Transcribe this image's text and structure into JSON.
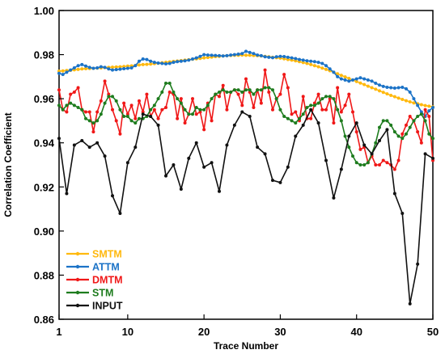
{
  "chart_data": {
    "type": "line",
    "xlabel": "Trace Number",
    "ylabel": "Correlation Coefficient",
    "xlim": [
      1,
      50
    ],
    "ylim": [
      0.86,
      1.0
    ],
    "xticks": [
      1,
      10,
      20,
      30,
      40,
      50
    ],
    "yticks": [
      0.86,
      0.88,
      0.9,
      0.92,
      0.94,
      0.96,
      0.98,
      1.0
    ],
    "ytick_labels": [
      "0.86",
      "0.88",
      "0.90",
      "0.92",
      "0.94",
      "0.96",
      "0.98",
      "1.00"
    ],
    "xtick_labels": [
      "1",
      "10",
      "20",
      "30",
      "40",
      "50"
    ],
    "legend_position": "bottom-left",
    "grid": false,
    "series": [
      {
        "name": "SMTM",
        "color": "#FFB90F",
        "x": [
          1,
          1.5,
          2,
          2.5,
          3,
          3.5,
          4,
          4.5,
          5,
          5.5,
          6,
          6.5,
          7,
          7.5,
          8,
          8.5,
          9,
          9.5,
          10,
          10.5,
          11,
          11.5,
          12,
          12.5,
          13,
          13.5,
          14,
          14.5,
          15,
          15.5,
          16,
          16.5,
          17,
          17.5,
          18,
          18.5,
          19,
          19.5,
          20,
          20.5,
          21,
          21.5,
          22,
          22.5,
          23,
          23.5,
          24,
          24.5,
          25,
          25.5,
          26,
          26.5,
          27,
          27.5,
          28,
          28.5,
          29,
          29.5,
          30,
          30.5,
          31,
          31.5,
          32,
          32.5,
          33,
          33.5,
          34,
          34.5,
          35,
          35.5,
          36,
          36.5,
          37,
          37.5,
          38,
          38.5,
          39,
          39.5,
          40,
          40.5,
          41,
          41.5,
          42,
          42.5,
          43,
          43.5,
          44,
          44.5,
          45,
          45.5,
          46,
          46.5,
          47,
          47.5,
          48,
          48.5,
          49,
          49.5,
          50
        ],
        "values": [
          0.9725,
          0.9726,
          0.9728,
          0.9729,
          0.9731,
          0.9733,
          0.9735,
          0.9736,
          0.9737,
          0.9738,
          0.9739,
          0.974,
          0.9741,
          0.9742,
          0.9743,
          0.9744,
          0.9745,
          0.9746,
          0.9748,
          0.9749,
          0.9751,
          0.9753,
          0.9755,
          0.9756,
          0.9757,
          0.9759,
          0.9761,
          0.9763,
          0.9765,
          0.9767,
          0.9769,
          0.9771,
          0.9773,
          0.9775,
          0.9777,
          0.9779,
          0.9781,
          0.9783,
          0.9785,
          0.9787,
          0.9789,
          0.9791,
          0.9792,
          0.9794,
          0.9795,
          0.9796,
          0.9797,
          0.9797,
          0.9798,
          0.9797,
          0.9797,
          0.9796,
          0.9795,
          0.9794,
          0.9792,
          0.979,
          0.9788,
          0.9786,
          0.9784,
          0.9781,
          0.9778,
          0.9775,
          0.9772,
          0.9768,
          0.9764,
          0.976,
          0.9755,
          0.975,
          0.9745,
          0.9739,
          0.9733,
          0.9727,
          0.972,
          0.9713,
          0.9706,
          0.9699,
          0.9692,
          0.9685,
          0.9678,
          0.9671,
          0.9664,
          0.9657,
          0.965,
          0.9643,
          0.9636,
          0.9629,
          0.9622,
          0.9615,
          0.9609,
          0.9603,
          0.9597,
          0.9591,
          0.9586,
          0.9581,
          0.9577,
          0.9573,
          0.9569,
          0.9566,
          0.9563
        ]
      },
      {
        "name": "ATTM",
        "color": "#1C73C7",
        "x": [
          1,
          1.5,
          2,
          2.5,
          3,
          3.5,
          4,
          4.5,
          5,
          5.5,
          6,
          6.5,
          7,
          7.5,
          8,
          8.5,
          9,
          9.5,
          10,
          10.5,
          11,
          11.5,
          12,
          12.5,
          13,
          13.5,
          14,
          14.5,
          15,
          15.5,
          16,
          16.5,
          17,
          17.5,
          18,
          18.5,
          19,
          19.5,
          20,
          20.5,
          21,
          21.5,
          22,
          22.5,
          23,
          23.5,
          24,
          24.5,
          25,
          25.5,
          26,
          26.5,
          27,
          27.5,
          28,
          28.5,
          29,
          29.5,
          30,
          30.5,
          31,
          31.5,
          32,
          32.5,
          33,
          33.5,
          34,
          34.5,
          35,
          35.5,
          36,
          36.5,
          37,
          37.5,
          38,
          38.5,
          39,
          39.5,
          40,
          40.5,
          41,
          41.5,
          42,
          42.5,
          43,
          43.5,
          44,
          44.5,
          45,
          45.5,
          46,
          46.5,
          47,
          47.5,
          48,
          48.5,
          49,
          49.5,
          50
        ],
        "values": [
          0.9715,
          0.971,
          0.972,
          0.973,
          0.974,
          0.975,
          0.9755,
          0.9748,
          0.9742,
          0.9738,
          0.974,
          0.9745,
          0.9742,
          0.9735,
          0.973,
          0.9732,
          0.9734,
          0.9736,
          0.9738,
          0.974,
          0.975,
          0.977,
          0.978,
          0.9778,
          0.977,
          0.9765,
          0.9762,
          0.976,
          0.9758,
          0.976,
          0.9765,
          0.9768,
          0.977,
          0.9772,
          0.9775,
          0.978,
          0.9785,
          0.9792,
          0.98,
          0.9798,
          0.9797,
          0.9796,
          0.9795,
          0.9794,
          0.9795,
          0.9798,
          0.98,
          0.9802,
          0.9805,
          0.9815,
          0.981,
          0.9805,
          0.9798,
          0.9795,
          0.979,
          0.9788,
          0.9786,
          0.979,
          0.9792,
          0.9791,
          0.9788,
          0.9785,
          0.9782,
          0.9778,
          0.9775,
          0.9772,
          0.977,
          0.9768,
          0.9765,
          0.976,
          0.975,
          0.9735,
          0.972,
          0.97,
          0.969,
          0.9685,
          0.968,
          0.9685,
          0.969,
          0.9695,
          0.969,
          0.9685,
          0.968,
          0.967,
          0.9662,
          0.9656,
          0.9652,
          0.965,
          0.9648,
          0.965,
          0.9652,
          0.9645,
          0.963,
          0.96,
          0.957,
          0.954,
          0.952,
          0.9545,
          0.956
        ]
      },
      {
        "name": "DMTM",
        "color": "#F01818",
        "x": [
          1,
          1.5,
          2,
          2.5,
          3,
          3.5,
          4,
          4.5,
          5,
          5.5,
          6,
          6.5,
          7,
          7.5,
          8,
          8.5,
          9,
          9.5,
          10,
          10.5,
          11,
          11.5,
          12,
          12.5,
          13,
          13.5,
          14,
          14.5,
          15,
          15.5,
          16,
          16.5,
          17,
          17.5,
          18,
          18.5,
          19,
          19.5,
          20,
          20.5,
          21,
          21.5,
          22,
          22.5,
          23,
          23.5,
          24,
          24.5,
          25,
          25.5,
          26,
          26.5,
          27,
          27.5,
          28,
          28.5,
          29,
          29.5,
          30,
          30.5,
          31,
          31.5,
          32,
          32.5,
          33,
          33.5,
          34,
          34.5,
          35,
          35.5,
          36,
          36.5,
          37,
          37.5,
          38,
          38.5,
          39,
          39.5,
          40,
          40.5,
          41,
          41.5,
          42,
          42.5,
          43,
          43.5,
          44,
          44.5,
          45,
          45.5,
          46,
          46.5,
          47,
          47.5,
          48,
          48.5,
          49,
          49.5,
          50
        ],
        "values": [
          0.964,
          0.955,
          0.954,
          0.962,
          0.963,
          0.965,
          0.955,
          0.954,
          0.954,
          0.945,
          0.954,
          0.959,
          0.968,
          0.962,
          0.955,
          0.95,
          0.944,
          0.958,
          0.953,
          0.957,
          0.951,
          0.959,
          0.954,
          0.962,
          0.952,
          0.955,
          0.951,
          0.955,
          0.956,
          0.963,
          0.962,
          0.951,
          0.96,
          0.949,
          0.953,
          0.96,
          0.953,
          0.954,
          0.946,
          0.958,
          0.95,
          0.962,
          0.961,
          0.966,
          0.955,
          0.963,
          0.964,
          0.962,
          0.957,
          0.969,
          0.963,
          0.956,
          0.964,
          0.958,
          0.973,
          0.963,
          0.955,
          0.96,
          0.962,
          0.971,
          0.965,
          0.953,
          0.954,
          0.95,
          0.961,
          0.951,
          0.951,
          0.958,
          0.962,
          0.955,
          0.955,
          0.96,
          0.949,
          0.965,
          0.954,
          0.957,
          0.962,
          0.954,
          0.945,
          0.937,
          0.938,
          0.931,
          0.934,
          0.93,
          0.93,
          0.932,
          0.931,
          0.93,
          0.928,
          0.932,
          0.944,
          0.948,
          0.952,
          0.95,
          0.945,
          0.94,
          0.955,
          0.952,
          0.932
        ]
      },
      {
        "name": "STM",
        "color": "#1E7C1E",
        "x": [
          1,
          1.5,
          2,
          2.5,
          3,
          3.5,
          4,
          4.5,
          5,
          5.5,
          6,
          6.5,
          7,
          7.5,
          8,
          8.5,
          9,
          9.5,
          10,
          10.5,
          11,
          11.5,
          12,
          12.5,
          13,
          13.5,
          14,
          14.5,
          15,
          15.5,
          16,
          16.5,
          17,
          17.5,
          18,
          18.5,
          19,
          19.5,
          20,
          20.5,
          21,
          21.5,
          22,
          22.5,
          23,
          23.5,
          24,
          24.5,
          25,
          25.5,
          26,
          26.5,
          27,
          27.5,
          28,
          28.5,
          29,
          29.5,
          30,
          30.5,
          31,
          31.5,
          32,
          32.5,
          33,
          33.5,
          34,
          34.5,
          35,
          35.5,
          36,
          36.5,
          37,
          37.5,
          38,
          38.5,
          39,
          39.5,
          40,
          40.5,
          41,
          41.5,
          42,
          42.5,
          43,
          43.5,
          44,
          44.5,
          45,
          45.5,
          46,
          46.5,
          47,
          47.5,
          48,
          48.5,
          49,
          49.5,
          50
        ],
        "values": [
          0.957,
          0.955,
          0.957,
          0.958,
          0.957,
          0.956,
          0.955,
          0.951,
          0.95,
          0.949,
          0.95,
          0.953,
          0.958,
          0.961,
          0.961,
          0.959,
          0.955,
          0.952,
          0.952,
          0.95,
          0.949,
          0.951,
          0.951,
          0.952,
          0.955,
          0.957,
          0.96,
          0.963,
          0.967,
          0.967,
          0.963,
          0.96,
          0.958,
          0.955,
          0.953,
          0.953,
          0.956,
          0.955,
          0.955,
          0.957,
          0.96,
          0.962,
          0.963,
          0.964,
          0.963,
          0.963,
          0.964,
          0.964,
          0.963,
          0.964,
          0.964,
          0.962,
          0.964,
          0.964,
          0.965,
          0.965,
          0.964,
          0.96,
          0.955,
          0.952,
          0.951,
          0.95,
          0.949,
          0.951,
          0.953,
          0.956,
          0.957,
          0.957,
          0.958,
          0.96,
          0.961,
          0.961,
          0.96,
          0.955,
          0.95,
          0.943,
          0.938,
          0.934,
          0.931,
          0.93,
          0.93,
          0.931,
          0.935,
          0.94,
          0.947,
          0.95,
          0.95,
          0.948,
          0.945,
          0.943,
          0.942,
          0.944,
          0.947,
          0.95,
          0.952,
          0.953,
          0.95,
          0.944,
          0.942
        ]
      },
      {
        "name": "INPUT",
        "color": "#111111",
        "x": [
          1,
          2,
          3,
          4,
          5,
          6,
          7,
          8,
          9,
          10,
          11,
          12,
          13,
          14,
          15,
          16,
          17,
          18,
          19,
          20,
          21,
          22,
          23,
          24,
          25,
          26,
          27,
          28,
          29,
          30,
          31,
          32,
          33,
          34,
          35,
          36,
          37,
          38,
          39,
          40,
          41,
          42,
          43,
          44,
          45,
          46,
          47,
          48,
          49,
          50
        ],
        "values": [
          0.942,
          0.917,
          0.939,
          0.941,
          0.938,
          0.94,
          0.934,
          0.916,
          0.908,
          0.931,
          0.938,
          0.953,
          0.952,
          0.948,
          0.925,
          0.93,
          0.919,
          0.933,
          0.94,
          0.929,
          0.931,
          0.918,
          0.939,
          0.948,
          0.954,
          0.952,
          0.938,
          0.935,
          0.923,
          0.922,
          0.929,
          0.943,
          0.948,
          0.955,
          0.949,
          0.932,
          0.915,
          0.928,
          0.943,
          0.949,
          0.939,
          0.935,
          0.941,
          0.946,
          0.917,
          0.908,
          0.867,
          0.885,
          0.935,
          0.933
        ]
      }
    ]
  }
}
